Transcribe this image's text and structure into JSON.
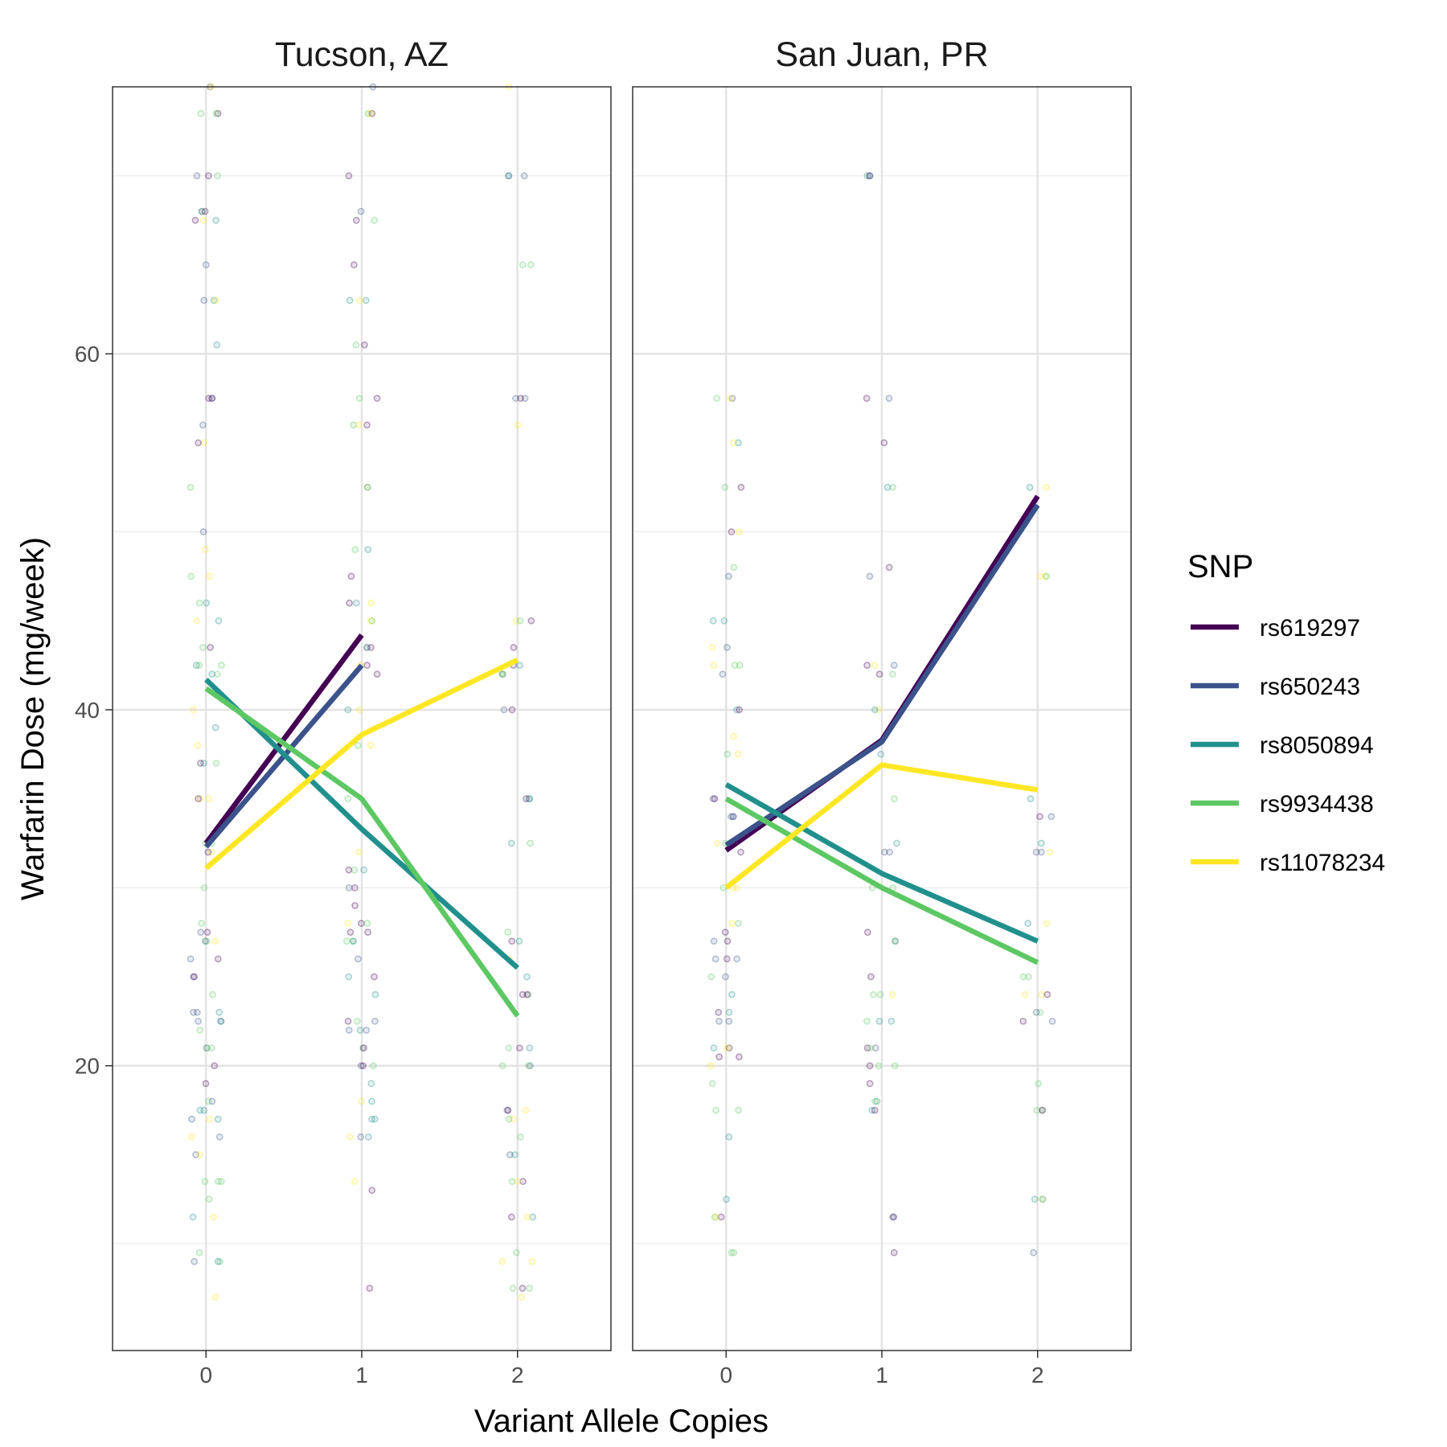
{
  "chart_data": {
    "type": "line",
    "ylabel": "Warfarin Dose (mg/week)",
    "xlabel": "Variant Allele Copies",
    "x": [
      0,
      1,
      2
    ],
    "x_ticks": [
      "0",
      "1",
      "2"
    ],
    "y_ticks": [
      20,
      40,
      60
    ],
    "xlim": [
      -0.6,
      2.6
    ],
    "ylim": [
      4,
      75
    ],
    "grid": true,
    "legend": {
      "title": "SNP",
      "placement": "right",
      "entries": [
        "rs619297",
        "rs650243",
        "rs8050894",
        "rs9934438",
        "rs11078234"
      ]
    },
    "colors": {
      "rs619297": "#440154",
      "rs650243": "#3B528B",
      "rs8050894": "#21908C",
      "rs9934438": "#5DC863",
      "rs11078234": "#FDE725"
    },
    "panels": [
      {
        "title": "Tucson, AZ",
        "series": [
          {
            "name": "rs619297",
            "values": [
              32.5,
              44.2,
              null
            ]
          },
          {
            "name": "rs650243",
            "values": [
              32.3,
              42.5,
              null
            ]
          },
          {
            "name": "rs8050894",
            "values": [
              41.7,
              33.3,
              25.5
            ]
          },
          {
            "name": "rs9934438",
            "values": [
              41.2,
              35.0,
              22.8
            ]
          },
          {
            "name": "rs11078234",
            "values": [
              31.1,
              38.6,
              42.8
            ]
          }
        ],
        "points": {
          "x0": [
            75,
            73.5,
            70,
            68,
            67.5,
            65,
            63,
            60.5,
            57.5,
            56,
            55,
            52.5,
            50,
            49,
            47.5,
            46,
            45,
            43.5,
            42.5,
            42,
            40,
            39,
            38,
            37,
            35,
            32.5,
            32,
            30,
            28,
            27.5,
            27,
            26,
            25,
            24,
            23,
            22.5,
            22,
            21,
            20,
            19,
            18,
            17.5,
            17,
            16,
            15,
            13.5,
            12.5,
            11.5,
            9.5,
            9,
            7
          ],
          "x1": [
            75,
            73.5,
            70,
            68,
            67.5,
            65,
            63,
            60.5,
            57.5,
            56,
            52.5,
            49,
            47.5,
            46,
            45,
            43.5,
            42.5,
            42,
            40,
            38,
            35,
            32,
            31,
            30,
            29,
            28,
            27.5,
            27,
            26,
            25,
            24,
            22.5,
            22,
            21,
            20,
            19,
            18,
            17,
            16,
            13.5,
            13,
            7.5
          ],
          "x2": [
            75,
            70,
            65,
            57.5,
            56,
            45,
            43.5,
            42.5,
            42,
            40,
            35,
            32.5,
            27.5,
            27,
            26,
            25,
            24,
            21,
            20,
            17.5,
            17,
            16,
            15,
            13.5,
            11.5,
            9.5,
            9,
            7.5,
            7
          ]
        }
      },
      {
        "title": "San Juan, PR",
        "series": [
          {
            "name": "rs619297",
            "values": [
              32.1,
              38.3,
              52.0
            ]
          },
          {
            "name": "rs650243",
            "values": [
              32.4,
              38.2,
              51.5
            ]
          },
          {
            "name": "rs8050894",
            "values": [
              35.8,
              30.8,
              27.0
            ]
          },
          {
            "name": "rs9934438",
            "values": [
              35.0,
              30.0,
              25.8
            ]
          },
          {
            "name": "rs11078234",
            "values": [
              30.0,
              36.9,
              35.5
            ]
          }
        ],
        "points": {
          "x0": [
            57.5,
            55,
            52.5,
            50,
            48,
            47.5,
            45,
            43.5,
            42.5,
            42,
            40,
            38.5,
            37.5,
            35,
            34,
            32.5,
            32,
            30,
            28,
            27.5,
            27,
            26,
            25,
            24,
            23,
            22.5,
            21,
            20.5,
            20,
            19,
            17.5,
            16,
            12.5,
            11.5,
            9.5
          ],
          "x1": [
            70,
            57.5,
            55,
            52.5,
            48,
            47.5,
            42.5,
            42,
            40,
            37.5,
            35,
            32.5,
            32,
            30,
            27.5,
            27,
            25,
            24,
            22.5,
            21,
            20,
            19,
            18,
            17.5,
            11.5,
            9.5
          ],
          "x2": [
            52.5,
            47.5,
            35,
            34,
            32.5,
            32,
            28,
            25,
            24,
            23,
            22.5,
            19,
            17.5,
            12.5,
            9.5
          ]
        }
      }
    ]
  }
}
